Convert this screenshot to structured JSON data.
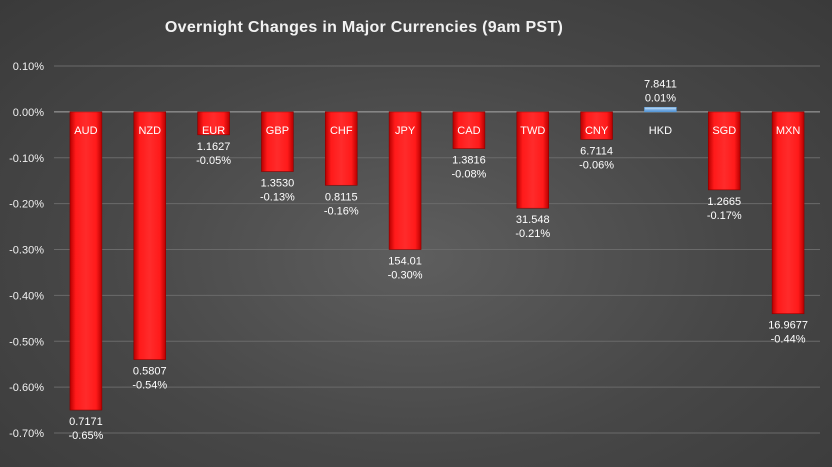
{
  "chart_data": {
    "type": "bar",
    "title": "Overnight Changes in Major Currencies (9am PST)",
    "xlabel": "",
    "ylabel": "",
    "ylim": [
      -0.7,
      0.1
    ],
    "yticks": [
      "0.10%",
      "0.00%",
      "-0.10%",
      "-0.20%",
      "-0.30%",
      "-0.40%",
      "-0.50%",
      "-0.60%",
      "-0.70%"
    ],
    "yticks_values": [
      0.1,
      0.0,
      -0.1,
      -0.2,
      -0.3,
      -0.4,
      -0.5,
      -0.6,
      -0.7
    ],
    "grid": true,
    "categories": [
      "AUD",
      "NZD",
      "EUR",
      "GBP",
      "CHF",
      "JPY",
      "CAD",
      "TWD",
      "CNY",
      "HKD",
      "SGD",
      "MXN"
    ],
    "values": [
      -0.65,
      -0.54,
      -0.05,
      -0.13,
      -0.16,
      -0.3,
      -0.08,
      -0.21,
      -0.06,
      0.01,
      -0.17,
      -0.44
    ],
    "rates": [
      "0.7171",
      "0.5807",
      "1.1627",
      "1.3530",
      "0.8115",
      "154.01",
      "1.3816",
      "31.548",
      "6.7114",
      "7.8411",
      "1.2665",
      "16.9677"
    ],
    "value_labels": [
      "-0.65%",
      "-0.54%",
      "-0.05%",
      "-0.13%",
      "-0.16%",
      "-0.30%",
      "-0.08%",
      "-0.21%",
      "-0.06%",
      "0.01%",
      "-0.17%",
      "-0.44%"
    ],
    "colors": {
      "negative": "#ff0000",
      "positive": "#9dc3e6",
      "grid": "#6a6a6a",
      "text": "#ffffff"
    }
  }
}
